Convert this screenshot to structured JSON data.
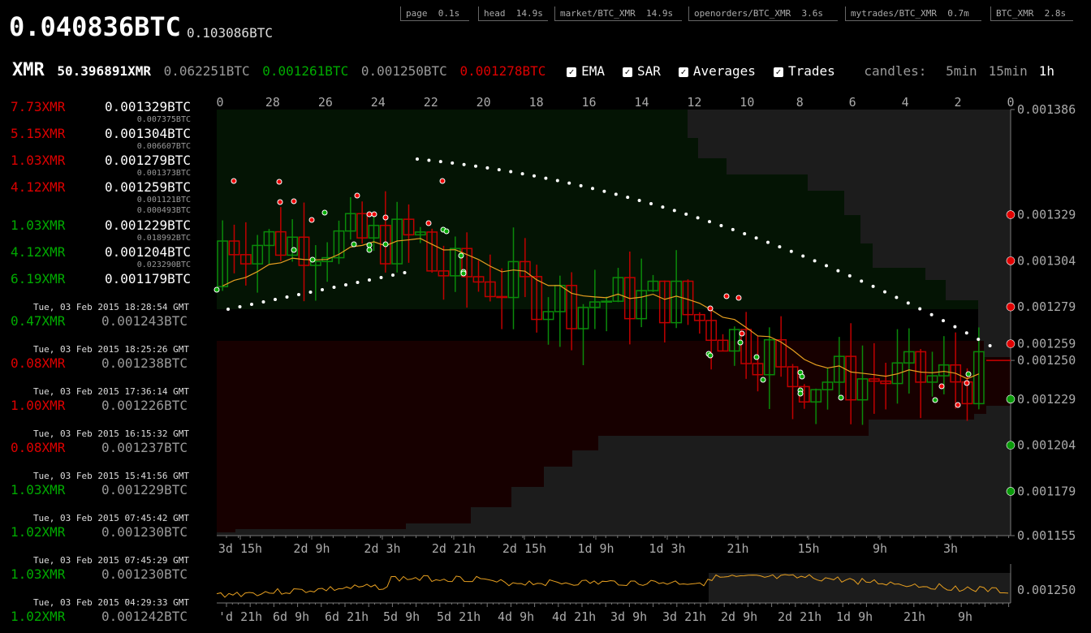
{
  "header": {
    "balance_btc": "0.040836BTC",
    "balance_btc_sub": "0.103086BTC",
    "timings": [
      {
        "label": "page",
        "value": "0.1s"
      },
      {
        "label": "head",
        "value": "14.9s"
      },
      {
        "label": "market/BTC_XMR",
        "value": "14.9s"
      },
      {
        "label": "openorders/BTC_XMR",
        "value": "3.6s"
      },
      {
        "label": "mytrades/BTC_XMR",
        "value": "0.7m"
      },
      {
        "label": "BTC_XMR",
        "value": "2.8s"
      }
    ]
  },
  "ticker": {
    "symbol": "XMR",
    "balance": "50.396891XMR",
    "last": "0.062251BTC",
    "bid": "0.001261BTC",
    "mid": "0.001250BTC",
    "ask": "0.001278BTC",
    "toggles": [
      {
        "label": "EMA",
        "checked": true
      },
      {
        "label": "SAR",
        "checked": true
      },
      {
        "label": "Averages",
        "checked": true
      },
      {
        "label": "Trades",
        "checked": true
      }
    ],
    "candles_label": "candles:",
    "candle_options": [
      "5min",
      "15min",
      "1h"
    ],
    "candle_active": "1h"
  },
  "orderbook": {
    "asks": [
      {
        "qty": "7.73XMR",
        "price": "0.001329BTC",
        "cum": "0.007375BTC"
      },
      {
        "qty": "5.15XMR",
        "price": "0.001304BTC",
        "cum": "0.006607BTC"
      },
      {
        "qty": "1.03XMR",
        "price": "0.001279BTC",
        "cum": "0.001373BTC"
      },
      {
        "qty": "4.12XMR",
        "price": "0.001259BTC",
        "cum": "0.001121BTC"
      }
    ],
    "spread_cum": "0.000493BTC",
    "bids": [
      {
        "qty": "1.03XMR",
        "price": "0.001229BTC",
        "cum": "0.018992BTC"
      },
      {
        "qty": "4.12XMR",
        "price": "0.001204BTC",
        "cum": "0.023290BTC"
      },
      {
        "qty": "6.19XMR",
        "price": "0.001179BTC",
        "cum": ""
      }
    ]
  },
  "trades": [
    {
      "time": "Tue, 03 Feb 2015 18:28:54 GMT",
      "qty": "0.47XMR",
      "price": "0.001243BTC",
      "side": "buy"
    },
    {
      "time": "Tue, 03 Feb 2015 18:25:26 GMT",
      "qty": "0.08XMR",
      "price": "0.001238BTC",
      "side": "sell"
    },
    {
      "time": "Tue, 03 Feb 2015 17:36:14 GMT",
      "qty": "1.00XMR",
      "price": "0.001226BTC",
      "side": "sell"
    },
    {
      "time": "Tue, 03 Feb 2015 16:15:32 GMT",
      "qty": "0.08XMR",
      "price": "0.001237BTC",
      "side": "sell"
    },
    {
      "time": "Tue, 03 Feb 2015 15:41:56 GMT",
      "qty": "1.03XMR",
      "price": "0.001229BTC",
      "side": "buy"
    },
    {
      "time": "Tue, 03 Feb 2015 07:45:42 GMT",
      "qty": "1.02XMR",
      "price": "0.001230BTC",
      "side": "buy"
    },
    {
      "time": "Tue, 03 Feb 2015 07:45:29 GMT",
      "qty": "1.03XMR",
      "price": "0.001230BTC",
      "side": "buy"
    },
    {
      "time": "Tue, 03 Feb 2015 04:29:33 GMT",
      "qty": "1.02XMR",
      "price": "0.001242BTC",
      "side": "buy"
    }
  ],
  "chart": {
    "depth_axis_labels": [
      "0",
      "28",
      "26",
      "24",
      "22",
      "20",
      "18",
      "16",
      "14",
      "12",
      "10",
      "8",
      "6",
      "4",
      "2",
      "0"
    ],
    "price_axis": [
      "0.001386",
      "0.001329",
      "0.001304",
      "0.001279",
      "0.001259",
      "0.001250",
      "0.001229",
      "0.001204",
      "0.001179",
      "0.001155"
    ],
    "order_markers": [
      {
        "price": "0.001329",
        "side": "ask"
      },
      {
        "price": "0.001304",
        "side": "ask"
      },
      {
        "price": "0.001279",
        "side": "ask"
      },
      {
        "price": "0.001259",
        "side": "ask"
      },
      {
        "price": "0.001229",
        "side": "bid"
      },
      {
        "price": "0.001204",
        "side": "bid"
      },
      {
        "price": "0.001179",
        "side": "bid"
      }
    ],
    "time_axis": [
      "3d 15h",
      "2d 9h",
      "2d 3h",
      "2d 21h",
      "2d 15h",
      "1d 9h",
      "1d 3h",
      "21h",
      "15h",
      "9h",
      "3h"
    ],
    "mini_price_label": "0.001250",
    "mini_time_axis": [
      "'d 21h",
      "6d 9h",
      "6d 21h",
      "5d 9h",
      "5d 21h",
      "4d 9h",
      "4d 21h",
      "3d 9h",
      "3d 21h",
      "2d 9h",
      "2d 21h",
      "1d 9h",
      "21h",
      "9h"
    ],
    "colors": {
      "up": "#0a8a0a",
      "down": "#c00000",
      "ema": "#e8a020",
      "ask_marker": "#e00000",
      "bid_marker": "#0a9a0a",
      "depth": "#1c1c1c"
    }
  }
}
